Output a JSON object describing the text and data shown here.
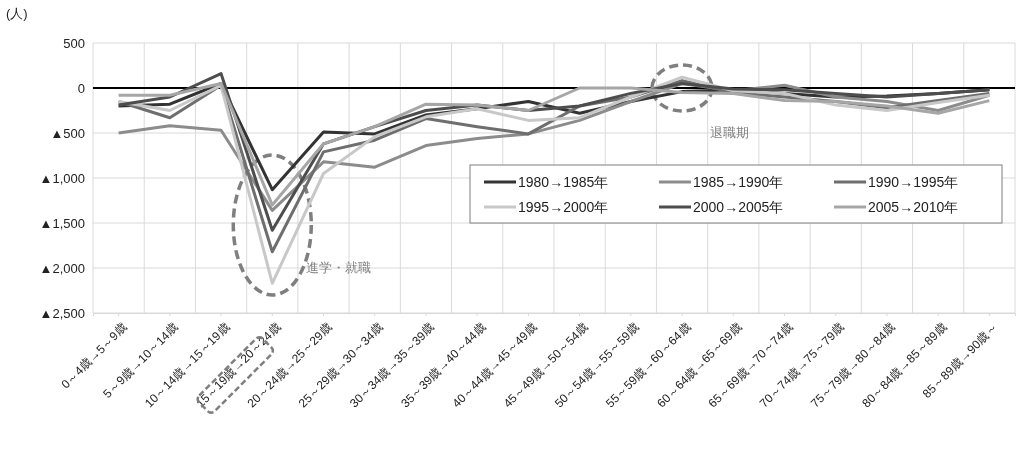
{
  "chart_data": {
    "type": "line",
    "ylabel": "(人)",
    "categories": [
      "0～4歳→5～9歳",
      "5～9歳→10～14歳",
      "10～14歳→15～19歳",
      "15～19歳→20～24歳",
      "20～24歳→25～29歳",
      "25～29歳→30～34歳",
      "30～34歳→35～39歳",
      "35～39歳→40～44歳",
      "40～44歳→45～49歳",
      "45～49歳→50～54歳",
      "50～54歳→55～59歳",
      "55～59歳→60～64歳",
      "60～64歳→65～69歳",
      "65～69歳→70～74歳",
      "70～74歳→75～79歳",
      "75～79歳→80～84歳",
      "80～84歳→85～89歳",
      "85～89歳→90歳～"
    ],
    "series": [
      {
        "name": "1980→1985年",
        "color": "#333333",
        "values": [
          -200,
          -180,
          50,
          -1130,
          -490,
          -510,
          -300,
          -230,
          -150,
          -280,
          -150,
          -40,
          -20,
          -60,
          -100,
          -90,
          -60,
          -20
        ]
      },
      {
        "name": "1985→1990年",
        "color": "#8c8c8c",
        "values": [
          -500,
          -420,
          -470,
          -1360,
          -820,
          -880,
          -640,
          -560,
          -510,
          -360,
          -150,
          50,
          -30,
          30,
          -100,
          -150,
          -250,
          -80
        ]
      },
      {
        "name": "1990→1995年",
        "color": "#6e6e6e",
        "values": [
          -150,
          -330,
          30,
          -1820,
          -710,
          -580,
          -340,
          -430,
          -510,
          -200,
          -100,
          80,
          -50,
          -100,
          -150,
          -220,
          -140,
          -60
        ]
      },
      {
        "name": "1995→2000年",
        "color": "#c8c8c8",
        "values": [
          -150,
          -250,
          30,
          -2170,
          -950,
          -540,
          -320,
          -230,
          -360,
          -330,
          -100,
          120,
          -30,
          -60,
          -190,
          -250,
          -160,
          -80
        ]
      },
      {
        "name": "2000→2005年",
        "color": "#4d4d4d",
        "values": [
          -190,
          -100,
          160,
          -1580,
          -620,
          -430,
          -250,
          -190,
          -250,
          -200,
          -60,
          50,
          -10,
          -20,
          -60,
          -100,
          -60,
          -20
        ]
      },
      {
        "name": "2005→2010年",
        "color": "#a6a6a6",
        "values": [
          -80,
          -80,
          50,
          -1300,
          -620,
          -430,
          -180,
          -190,
          -250,
          0,
          0,
          -50,
          -60,
          -140,
          -150,
          -200,
          -280,
          -140
        ]
      }
    ],
    "ylim": [
      -2500,
      500
    ],
    "yticks": [
      500,
      0,
      {
        "value": -500,
        "label": "▲500"
      },
      {
        "value": -1000,
        "label": "▲1,000"
      },
      {
        "value": -1500,
        "label": "▲1,500"
      },
      {
        "value": -2000,
        "label": "▲2,000"
      },
      {
        "value": -2500,
        "label": "▲2,500"
      }
    ],
    "ref_lines": [
      {
        "axis": "y",
        "value": 0,
        "color": "#000000"
      }
    ],
    "annotations": [
      "進学・就職",
      "退職期"
    ],
    "grid": true,
    "legend": "right",
    "marker": "none",
    "line_style": "solid"
  }
}
